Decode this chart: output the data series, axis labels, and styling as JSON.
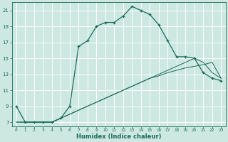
{
  "xlabel": "Humidex (Indice chaleur)",
  "background_color": "#cce8e0",
  "grid_color": "#ffffff",
  "line_color": "#1a6b5a",
  "xlim": [
    -0.5,
    23.5
  ],
  "ylim": [
    6.5,
    22
  ],
  "xticks": [
    0,
    1,
    2,
    3,
    4,
    5,
    6,
    7,
    8,
    9,
    10,
    11,
    12,
    13,
    14,
    15,
    16,
    17,
    18,
    19,
    20,
    21,
    22,
    23
  ],
  "yticks": [
    7,
    9,
    11,
    13,
    15,
    17,
    19,
    21
  ],
  "series1_y": [
    9,
    7,
    7,
    7,
    7,
    7.5,
    9,
    16.5,
    17.2,
    19,
    19.5,
    19.5,
    20.3,
    21.5,
    21,
    20.5,
    19.2,
    17.2,
    15.2,
    15.2,
    15.0,
    13.2,
    12.5,
    12.2
  ],
  "series2_y": [
    7,
    7,
    7,
    7,
    7,
    7.5,
    8.0,
    8.5,
    9.0,
    9.5,
    10.0,
    10.5,
    11.0,
    11.5,
    12.0,
    12.5,
    12.8,
    13.2,
    13.5,
    13.8,
    14.0,
    14.2,
    14.5,
    12.5
  ],
  "series3_y": [
    7,
    7,
    7,
    7,
    7,
    7.5,
    8.0,
    8.5,
    9.0,
    9.5,
    10.0,
    10.5,
    11.0,
    11.5,
    12.0,
    12.5,
    13.0,
    13.5,
    14.0,
    14.5,
    15.0,
    14.5,
    13.2,
    12.5
  ]
}
